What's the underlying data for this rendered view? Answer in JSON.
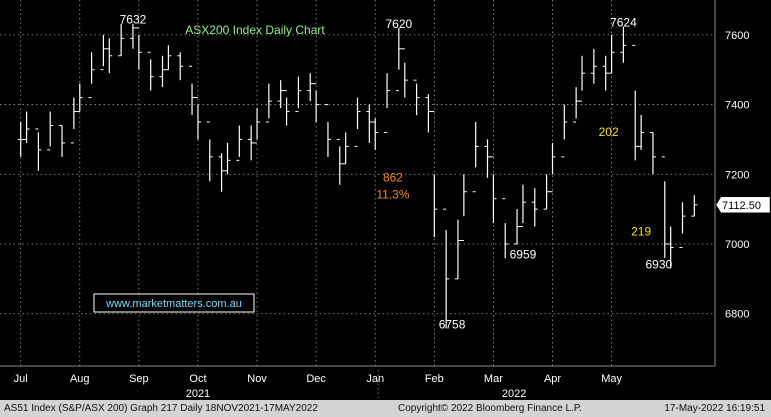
{
  "chart_data": {
    "type": "ohlc",
    "title": "ASX200 Index Daily Chart",
    "x_tick_labels": [
      "Jul",
      "Aug",
      "Sep",
      "Oct",
      "Nov",
      "Dec",
      "Jan",
      "Feb",
      "Mar",
      "Apr",
      "May"
    ],
    "year_labels": [
      "2021",
      "2022"
    ],
    "y_ticks": [
      6800,
      7000,
      7200,
      7400,
      7600
    ],
    "ylim": [
      6650,
      7700
    ],
    "grid": true,
    "last_price_label": "7112.50",
    "last_price": 7112.5,
    "watermark": "www.marketmatters.com.au",
    "annotations": [
      {
        "id": "peak-aug",
        "text": "7632",
        "color": "#ffffff",
        "x": 1.9,
        "y": 7632
      },
      {
        "id": "peak-jan",
        "text": "7620",
        "color": "#ffffff",
        "x": 6.4,
        "y": 7620
      },
      {
        "id": "peak-apr",
        "text": "7624",
        "color": "#ffffff",
        "x": 10.2,
        "y": 7624
      },
      {
        "id": "low-jan",
        "text": "6758",
        "color": "#ffffff",
        "x": 7.3,
        "y": 6758
      },
      {
        "id": "low-feb",
        "text": "6959",
        "color": "#ffffff",
        "x": 8.5,
        "y": 6959
      },
      {
        "id": "low-may",
        "text": "6930",
        "color": "#ffffff",
        "x": 10.8,
        "y": 6930
      },
      {
        "id": "fall-points",
        "text": "862",
        "color": "#f08a24",
        "x": 6.3,
        "y": 7180
      },
      {
        "id": "fall-percent",
        "text": "11.3%",
        "color": "#f08a24",
        "x": 6.3,
        "y": 7130
      },
      {
        "id": "drop-apr",
        "text": "202",
        "color": "#f5e400",
        "x": 9.95,
        "y": 7310
      },
      {
        "id": "bounce-may",
        "text": "219",
        "color": "#f5e400",
        "x": 10.5,
        "y": 7025
      }
    ],
    "x": [
      0.0,
      0.1,
      0.3,
      0.5,
      0.7,
      0.9,
      1.0,
      1.2,
      1.4,
      1.5,
      1.7,
      1.9,
      2.0,
      2.2,
      2.4,
      2.5,
      2.7,
      2.9,
      3.0,
      3.2,
      3.4,
      3.5,
      3.7,
      3.9,
      4.0,
      4.2,
      4.4,
      4.5,
      4.7,
      4.9,
      5.0,
      5.2,
      5.4,
      5.5,
      5.7,
      5.9,
      6.0,
      6.2,
      6.4,
      6.5,
      6.7,
      6.9,
      7.0,
      7.2,
      7.4,
      7.5,
      7.7,
      7.9,
      8.0,
      8.2,
      8.4,
      8.5,
      8.7,
      8.9,
      9.0,
      9.2,
      9.4,
      9.5,
      9.7,
      9.9,
      10.0,
      10.2,
      10.4,
      10.5,
      10.7,
      10.9,
      11.0,
      11.2,
      11.4
    ],
    "close": [
      7300,
      7330,
      7270,
      7340,
      7290,
      7380,
      7420,
      7500,
      7560,
      7540,
      7590,
      7620,
      7550,
      7480,
      7500,
      7540,
      7510,
      7420,
      7350,
      7250,
      7210,
      7240,
      7300,
      7290,
      7350,
      7410,
      7440,
      7380,
      7440,
      7460,
      7400,
      7300,
      7230,
      7280,
      7380,
      7350,
      7320,
      7440,
      7560,
      7470,
      7420,
      7380,
      7100,
      6900,
      7010,
      7150,
      7280,
      7250,
      7130,
      7000,
      7050,
      7120,
      7100,
      7150,
      7250,
      7350,
      7410,
      7490,
      7510,
      7490,
      7550,
      7570,
      7280,
      7320,
      7250,
      7000,
      6990,
      7080,
      7112.5
    ],
    "high": [
      7350,
      7380,
      7320,
      7380,
      7340,
      7420,
      7460,
      7550,
      7600,
      7590,
      7632,
      7632,
      7600,
      7530,
      7540,
      7570,
      7550,
      7460,
      7400,
      7300,
      7260,
      7290,
      7340,
      7340,
      7390,
      7460,
      7470,
      7420,
      7480,
      7490,
      7440,
      7350,
      7280,
      7320,
      7420,
      7400,
      7360,
      7490,
      7620,
      7520,
      7460,
      7430,
      7200,
      7040,
      7070,
      7200,
      7350,
      7300,
      7200,
      7060,
      7100,
      7170,
      7160,
      7200,
      7290,
      7400,
      7450,
      7540,
      7560,
      7540,
      7600,
      7624,
      7440,
      7370,
      7320,
      7180,
      7050,
      7120,
      7140
    ],
    "low": [
      7250,
      7290,
      7210,
      7280,
      7250,
      7330,
      7380,
      7460,
      7510,
      7490,
      7540,
      7560,
      7500,
      7440,
      7450,
      7500,
      7470,
      7370,
      7300,
      7180,
      7150,
      7200,
      7250,
      7240,
      7300,
      7360,
      7390,
      7340,
      7390,
      7410,
      7350,
      7250,
      7170,
      7230,
      7330,
      7290,
      7270,
      7390,
      7500,
      7420,
      7370,
      7320,
      7020,
      6758,
      6900,
      7080,
      7220,
      7190,
      7060,
      6959,
      7000,
      7060,
      7050,
      7100,
      7200,
      7300,
      7360,
      7440,
      7460,
      7440,
      7490,
      7520,
      7240,
      7270,
      7200,
      6960,
      6930,
      7030,
      7080
    ]
  },
  "footer": {
    "left": "AS51 Index (S&P/ASX 200) Graph 217  Daily 18NOV2021-17MAY2022",
    "mid": "Copyright© 2022 Bloomberg Finance L.P.",
    "right": "17-May-2022 16:19:51"
  }
}
